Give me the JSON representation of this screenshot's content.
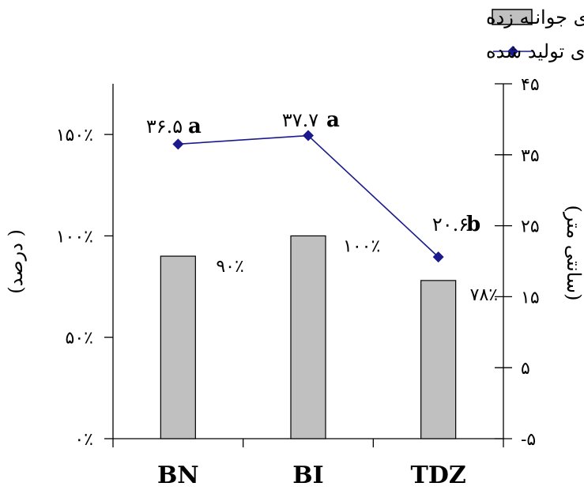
{
  "chart_data": {
    "type": "bar",
    "categories": [
      "BN",
      "BI",
      "TDZ"
    ],
    "legend": [
      {
        "label": "درصد ریز نمونه های جوانـه زده",
        "kind": "bar"
      },
      {
        "label": "کل طول شاخساره های تولید شده",
        "kind": "line"
      }
    ],
    "series": [
      {
        "name": "درصد ریز نمونه های جوانـه زده",
        "kind": "bar",
        "axis": "left",
        "values": [
          90,
          100,
          78
        ],
        "labels": [
          "۹۰٪",
          "۱۰۰٪",
          "۷۸٪"
        ],
        "color": "#c0c0c0"
      },
      {
        "name": "کل طول شاخساره های تولید شده",
        "kind": "line",
        "axis": "right",
        "values": [
          36.5,
          37.7,
          20.6
        ],
        "labels": [
          "۳۶.۵",
          "۳۷.۷",
          "۲۰.۶"
        ],
        "significance": [
          "a",
          "a",
          "b"
        ],
        "color": "#1a1a8c"
      }
    ],
    "y_left": {
      "label": "( درصد)",
      "ylim": [
        0,
        175
      ],
      "ticks": [
        0,
        50,
        100,
        150
      ],
      "tick_labels": [
        "۰٪",
        "۵۰٪",
        "۱۰۰٪",
        "۱۵۰٪"
      ]
    },
    "y_right": {
      "label": "(سانتی متر)",
      "ylim": [
        -5,
        45
      ],
      "ticks": [
        -5,
        5,
        15,
        25,
        35,
        45
      ],
      "tick_labels": [
        "-۵",
        "۵",
        "۱۵",
        "۲۵",
        "۳۵",
        "۴۵"
      ]
    },
    "grid": false,
    "legend_position": "top-right"
  }
}
